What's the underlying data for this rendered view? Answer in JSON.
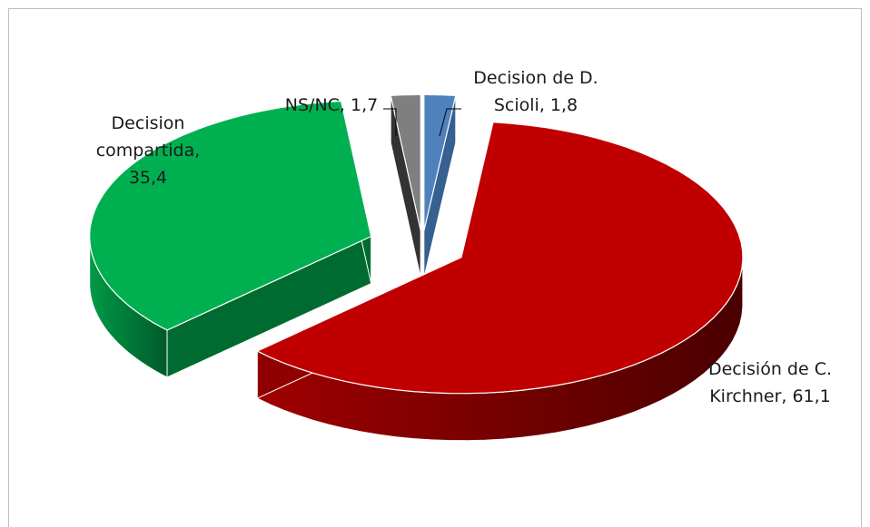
{
  "chart_data": {
    "type": "pie",
    "style": "3d-exploded",
    "title": "",
    "slices": [
      {
        "label_lines": [
          "Decision de D.",
          "Scioli, 1,8"
        ],
        "category": "Decision de D. Scioli",
        "value": 1.8,
        "color": "#4f81bd"
      },
      {
        "label_lines": [
          "Decisión de C.",
          "Kirchner, 61,1"
        ],
        "category": "Decisión de C. Kirchner",
        "value": 61.1,
        "color": "#c00000"
      },
      {
        "label_lines": [
          "Decision",
          "compartida,",
          "35,4"
        ],
        "category": "Decision compartida",
        "value": 35.4,
        "color": "#00b050"
      },
      {
        "label_lines": [
          "NS/NC, 1,7"
        ],
        "category": "NS/NC",
        "value": 1.7,
        "color": "#7f7f7f"
      }
    ],
    "legend": "none",
    "data_labels": "outside, category name and value"
  }
}
